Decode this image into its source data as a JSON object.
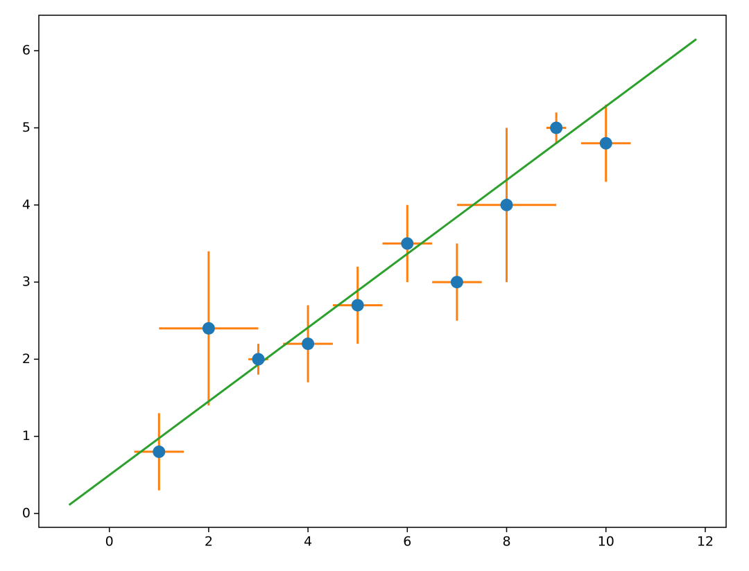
{
  "chart_data": {
    "type": "scatter",
    "x": [
      1,
      2,
      3,
      4,
      5,
      6,
      7,
      8,
      9,
      10
    ],
    "series": [
      {
        "color": "#1f77b4",
        "error_color": "#ff7f0e",
        "values": [
          0.8,
          2.4,
          2.0,
          2.2,
          2.7,
          3.5,
          3.0,
          4.0,
          5.0,
          4.8
        ],
        "xerr": [
          0.5,
          1.0,
          0.2,
          0.5,
          0.5,
          0.5,
          0.5,
          1.0,
          0.2,
          0.5
        ],
        "yerr": [
          0.5,
          1.0,
          0.2,
          0.5,
          0.5,
          0.5,
          0.5,
          1.0,
          0.2,
          0.5
        ]
      }
    ],
    "fit": {
      "type": "line",
      "color": "#2ca02c",
      "x": [
        -0.81,
        11.82
      ],
      "y": [
        0.11,
        6.15
      ]
    },
    "xlim": [
      -1.42,
      12.42
    ],
    "ylim": [
      -0.18,
      6.46
    ],
    "xticks": [
      0,
      2,
      4,
      6,
      8,
      10,
      12
    ],
    "yticks": [
      0,
      1,
      2,
      3,
      4,
      5,
      6
    ],
    "grid": false
  }
}
